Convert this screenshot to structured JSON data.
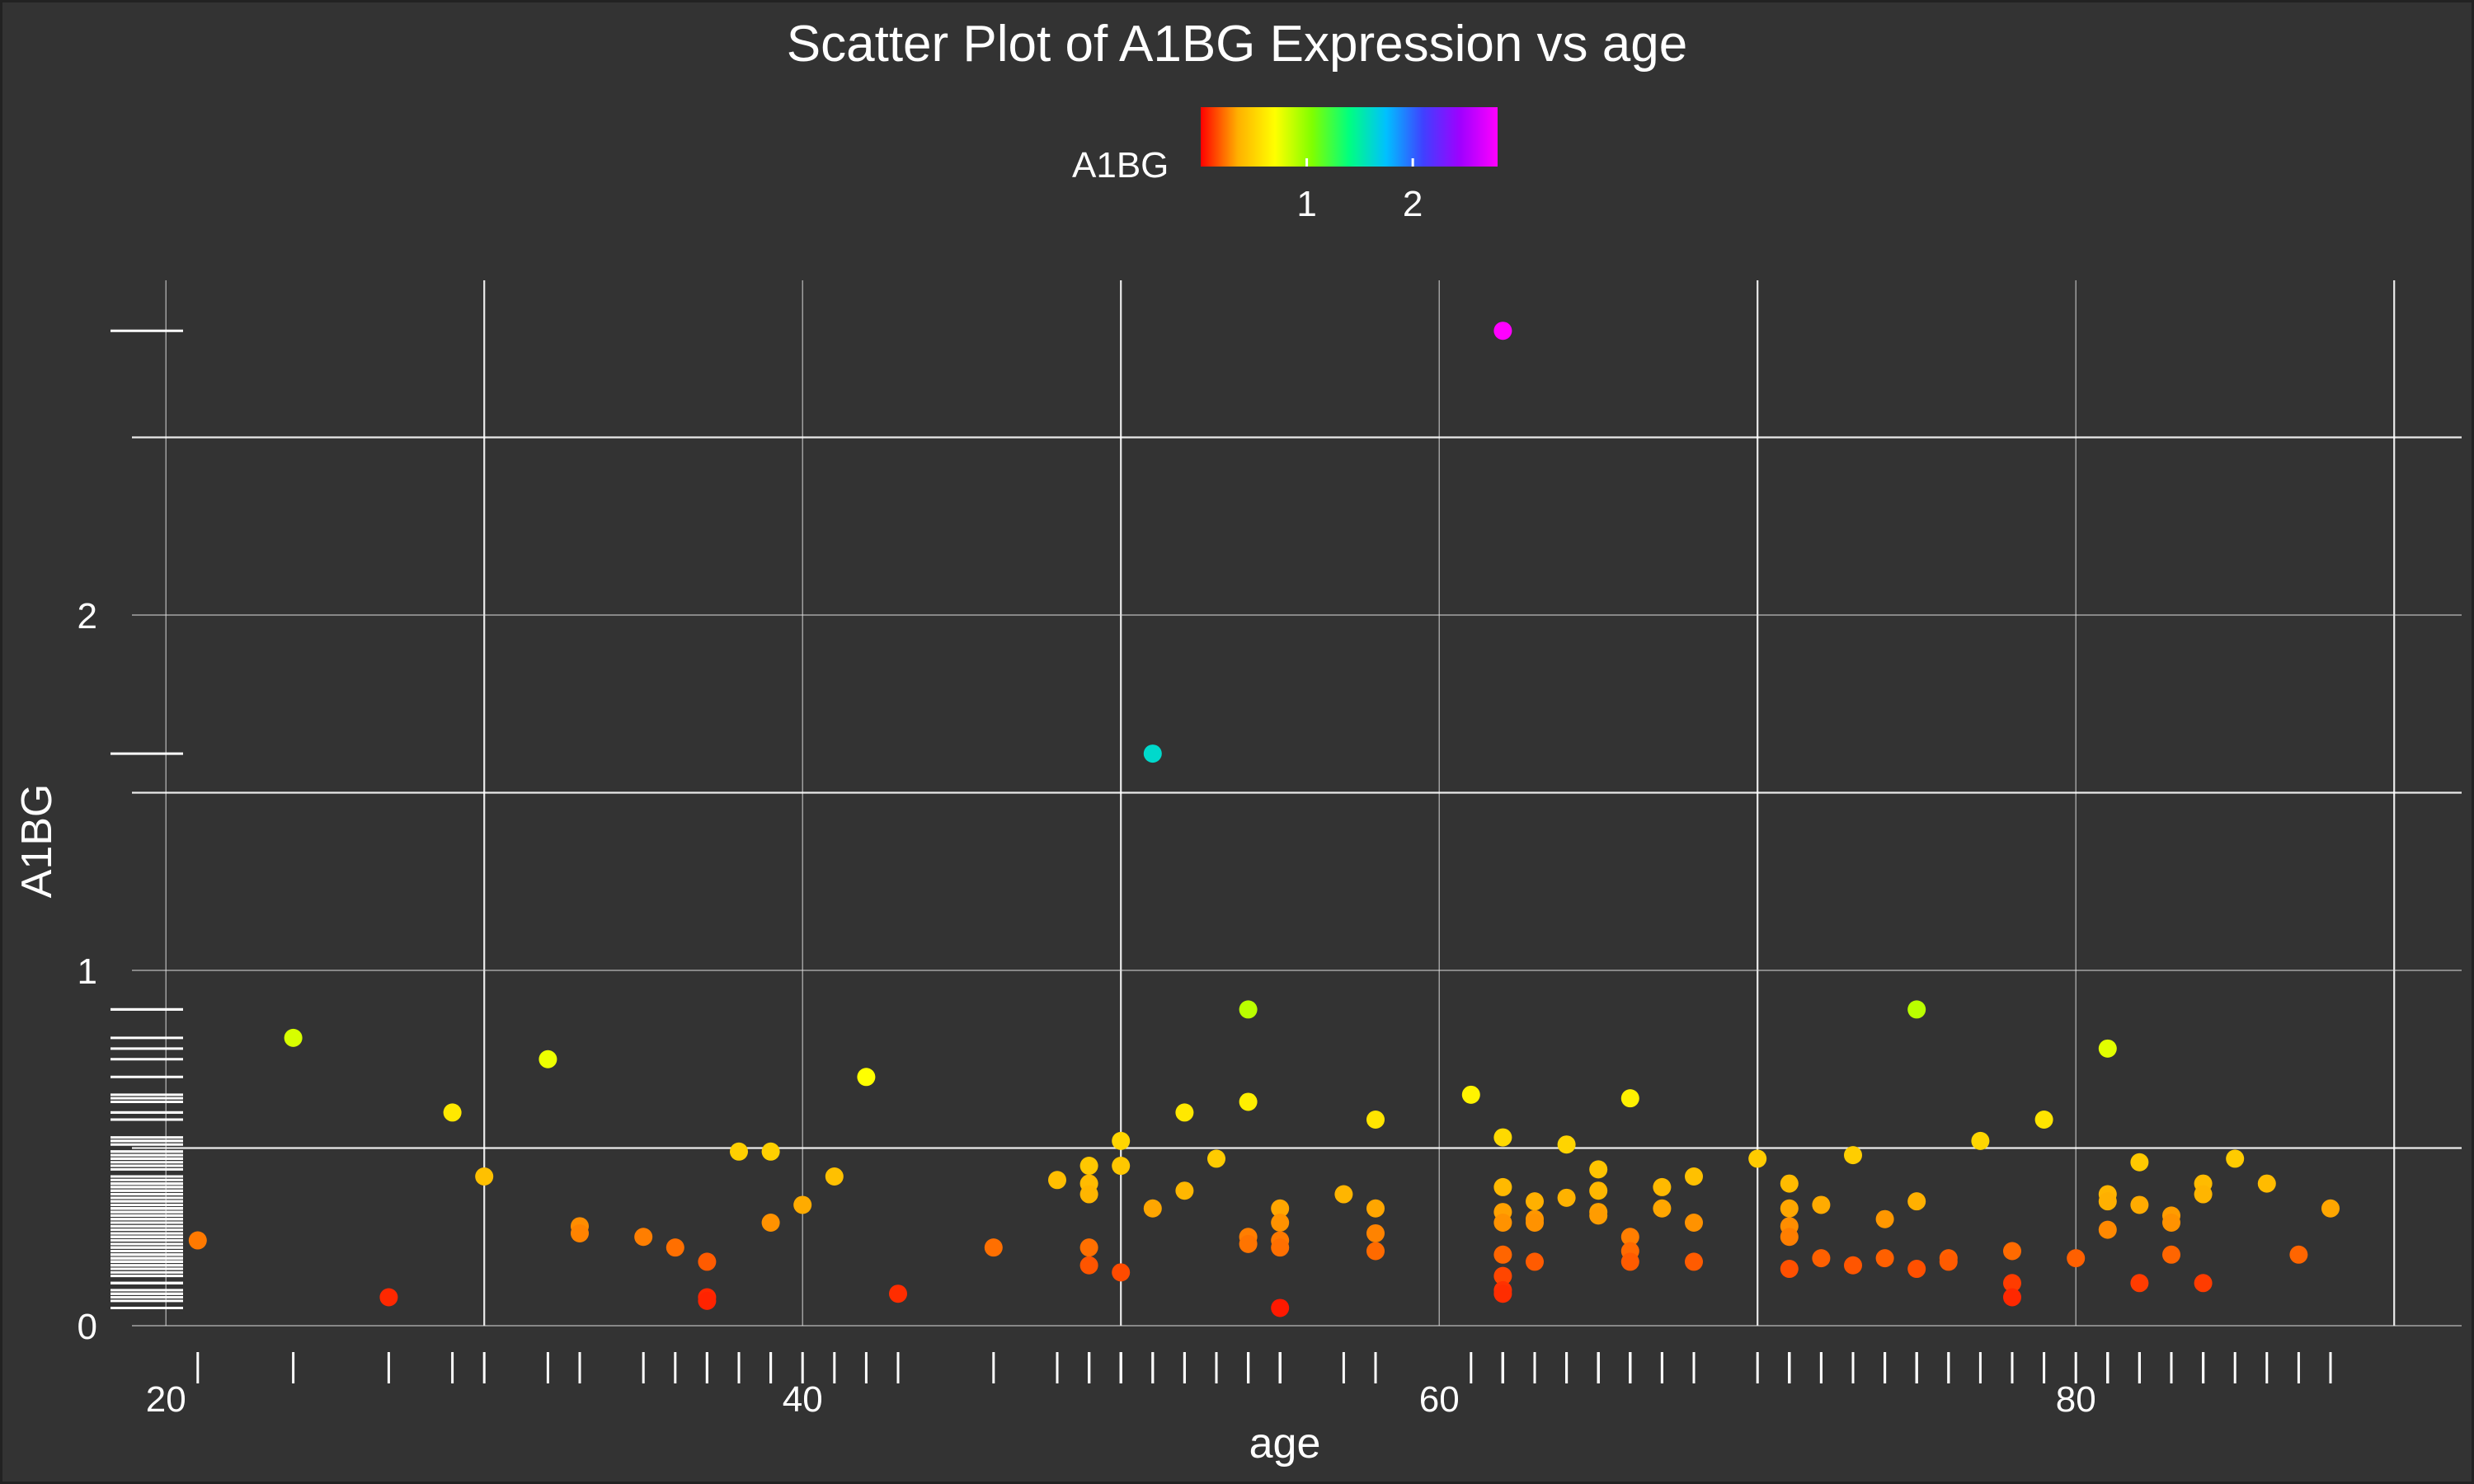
{
  "chart_data": {
    "type": "scatter",
    "title": "Scatter Plot of A1BG Expression vs age",
    "xlabel": "age",
    "ylabel": "A1BG",
    "xlim": [
      18,
      91
    ],
    "ylim": [
      0,
      2.8
    ],
    "x_ticks": [
      20,
      40,
      60,
      80
    ],
    "y_ticks": [
      0,
      1,
      2
    ],
    "x_tick_labels": [
      "20",
      "40",
      "60",
      "80"
    ],
    "y_tick_labels": [
      "0",
      "1",
      "2"
    ],
    "grid": true,
    "rug": true,
    "colorbar": {
      "title": "A1BG",
      "tick_values": [
        1,
        2
      ],
      "tick_labels": [
        "1",
        "2"
      ],
      "range": [
        0,
        2.8
      ],
      "colors": [
        "#ff0000",
        "#ffb000",
        "#ffff00",
        "#80ff00",
        "#00ff80",
        "#00c0ff",
        "#4040ff",
        "#a000ff",
        "#ff00ff"
      ],
      "placement": "top"
    },
    "points": [
      {
        "x": 21,
        "y": 0.24
      },
      {
        "x": 24,
        "y": 0.81
      },
      {
        "x": 27,
        "y": 0.08
      },
      {
        "x": 29,
        "y": 0.6
      },
      {
        "x": 30,
        "y": 0.42
      },
      {
        "x": 32,
        "y": 0.75
      },
      {
        "x": 33,
        "y": 0.28
      },
      {
        "x": 33,
        "y": 0.26
      },
      {
        "x": 35,
        "y": 0.25
      },
      {
        "x": 36,
        "y": 0.22
      },
      {
        "x": 37,
        "y": 0.18
      },
      {
        "x": 37,
        "y": 0.08
      },
      {
        "x": 37,
        "y": 0.07
      },
      {
        "x": 38,
        "y": 0.49
      },
      {
        "x": 39,
        "y": 0.49
      },
      {
        "x": 39,
        "y": 0.29
      },
      {
        "x": 40,
        "y": 0.34
      },
      {
        "x": 41,
        "y": 0.42
      },
      {
        "x": 42,
        "y": 0.7
      },
      {
        "x": 43,
        "y": 0.09
      },
      {
        "x": 46,
        "y": 0.22
      },
      {
        "x": 48,
        "y": 0.41
      },
      {
        "x": 49,
        "y": 0.45
      },
      {
        "x": 49,
        "y": 0.4
      },
      {
        "x": 49,
        "y": 0.37
      },
      {
        "x": 49,
        "y": 0.22
      },
      {
        "x": 49,
        "y": 0.17
      },
      {
        "x": 50,
        "y": 0.52
      },
      {
        "x": 50,
        "y": 0.45
      },
      {
        "x": 50,
        "y": 0.15
      },
      {
        "x": 51,
        "y": 1.61
      },
      {
        "x": 51,
        "y": 0.33
      },
      {
        "x": 52,
        "y": 0.6
      },
      {
        "x": 52,
        "y": 0.38
      },
      {
        "x": 53,
        "y": 0.47
      },
      {
        "x": 54,
        "y": 0.89
      },
      {
        "x": 54,
        "y": 0.63
      },
      {
        "x": 54,
        "y": 0.25
      },
      {
        "x": 54,
        "y": 0.23
      },
      {
        "x": 55,
        "y": 0.33
      },
      {
        "x": 55,
        "y": 0.29
      },
      {
        "x": 55,
        "y": 0.24
      },
      {
        "x": 55,
        "y": 0.22
      },
      {
        "x": 55,
        "y": 0.05
      },
      {
        "x": 57,
        "y": 0.37
      },
      {
        "x": 58,
        "y": 0.58
      },
      {
        "x": 58,
        "y": 0.33
      },
      {
        "x": 58,
        "y": 0.26
      },
      {
        "x": 58,
        "y": 0.21
      },
      {
        "x": 61,
        "y": 0.65
      },
      {
        "x": 62,
        "y": 2.8
      },
      {
        "x": 62,
        "y": 0.53
      },
      {
        "x": 62,
        "y": 0.39
      },
      {
        "x": 62,
        "y": 0.32
      },
      {
        "x": 62,
        "y": 0.29
      },
      {
        "x": 62,
        "y": 0.2
      },
      {
        "x": 62,
        "y": 0.14
      },
      {
        "x": 62,
        "y": 0.1
      },
      {
        "x": 62,
        "y": 0.09
      },
      {
        "x": 63,
        "y": 0.35
      },
      {
        "x": 63,
        "y": 0.3
      },
      {
        "x": 63,
        "y": 0.29
      },
      {
        "x": 63,
        "y": 0.18
      },
      {
        "x": 64,
        "y": 0.51
      },
      {
        "x": 64,
        "y": 0.36
      },
      {
        "x": 65,
        "y": 0.44
      },
      {
        "x": 65,
        "y": 0.38
      },
      {
        "x": 65,
        "y": 0.32
      },
      {
        "x": 65,
        "y": 0.31
      },
      {
        "x": 66,
        "y": 0.64
      },
      {
        "x": 66,
        "y": 0.25
      },
      {
        "x": 66,
        "y": 0.21
      },
      {
        "x": 66,
        "y": 0.18
      },
      {
        "x": 67,
        "y": 0.39
      },
      {
        "x": 67,
        "y": 0.33
      },
      {
        "x": 68,
        "y": 0.42
      },
      {
        "x": 68,
        "y": 0.29
      },
      {
        "x": 68,
        "y": 0.18
      },
      {
        "x": 70,
        "y": 0.47
      },
      {
        "x": 71,
        "y": 0.4
      },
      {
        "x": 71,
        "y": 0.33
      },
      {
        "x": 71,
        "y": 0.28
      },
      {
        "x": 71,
        "y": 0.25
      },
      {
        "x": 71,
        "y": 0.16
      },
      {
        "x": 72,
        "y": 0.34
      },
      {
        "x": 72,
        "y": 0.19
      },
      {
        "x": 73,
        "y": 0.48
      },
      {
        "x": 73,
        "y": 0.17
      },
      {
        "x": 74,
        "y": 0.3
      },
      {
        "x": 74,
        "y": 0.19
      },
      {
        "x": 75,
        "y": 0.89
      },
      {
        "x": 75,
        "y": 0.35
      },
      {
        "x": 75,
        "y": 0.16
      },
      {
        "x": 76,
        "y": 0.19
      },
      {
        "x": 76,
        "y": 0.18
      },
      {
        "x": 77,
        "y": 0.52
      },
      {
        "x": 78,
        "y": 0.21
      },
      {
        "x": 78,
        "y": 0.12
      },
      {
        "x": 78,
        "y": 0.08
      },
      {
        "x": 79,
        "y": 0.58
      },
      {
        "x": 80,
        "y": 0.19
      },
      {
        "x": 81,
        "y": 0.78
      },
      {
        "x": 81,
        "y": 0.37
      },
      {
        "x": 81,
        "y": 0.35
      },
      {
        "x": 81,
        "y": 0.27
      },
      {
        "x": 82,
        "y": 0.46
      },
      {
        "x": 82,
        "y": 0.34
      },
      {
        "x": 82,
        "y": 0.12
      },
      {
        "x": 83,
        "y": 0.31
      },
      {
        "x": 83,
        "y": 0.29
      },
      {
        "x": 83,
        "y": 0.2
      },
      {
        "x": 84,
        "y": 0.4
      },
      {
        "x": 84,
        "y": 0.37
      },
      {
        "x": 84,
        "y": 0.12
      },
      {
        "x": 85,
        "y": 0.47
      },
      {
        "x": 86,
        "y": 0.4
      },
      {
        "x": 87,
        "y": 0.2
      },
      {
        "x": 88,
        "y": 0.33
      }
    ]
  }
}
